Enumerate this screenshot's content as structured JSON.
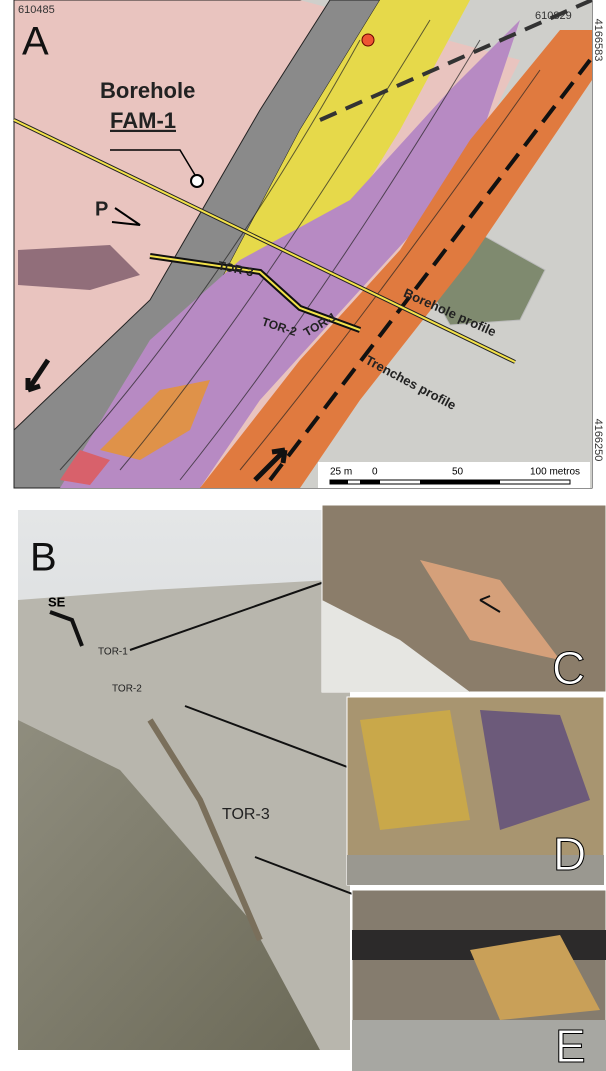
{
  "panel_a": {
    "label": "A",
    "coords": {
      "top_left": "610485",
      "top_right": "610829",
      "right_top": "4166583",
      "right_bottom": "4166250"
    },
    "borehole_label": "Borehole",
    "borehole_name": "FAM-1",
    "p_label": "P",
    "trenches": [
      "TOR-3",
      "TOR-2",
      "TOR-1"
    ],
    "borehole_profile": "Borehole profile",
    "trenches_profile": "Trenches profile",
    "scale_bar": [
      "25 m",
      "0",
      "50",
      "100 metros"
    ]
  },
  "panel_b": {
    "label": "B",
    "direction": "SE",
    "trenches": [
      "TOR-1",
      "TOR-2",
      "TOR-3"
    ]
  },
  "insets": [
    "C",
    "D",
    "E"
  ]
}
